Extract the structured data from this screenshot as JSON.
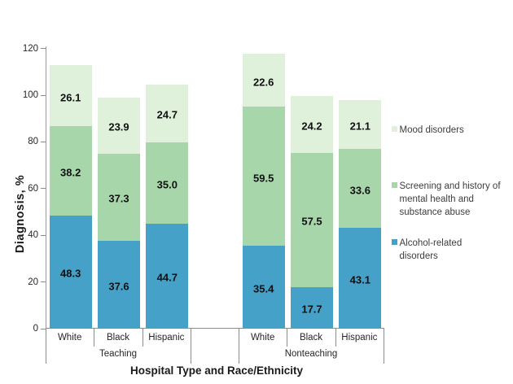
{
  "chart_data": {
    "type": "bar",
    "stacked": true,
    "xlabel": "Hospital Type and Race/Ethnicity",
    "ylabel": "Diagnosis, %",
    "ylim": [
      0,
      120
    ],
    "yticks": [
      0,
      20,
      40,
      60,
      80,
      100,
      120
    ],
    "grid": false,
    "legend_position": "right",
    "groups": [
      {
        "label": "Teaching",
        "categories": [
          "White",
          "Black",
          "Hispanic"
        ]
      },
      {
        "label": "Nonteaching",
        "categories": [
          "White",
          "Black",
          "Hispanic"
        ]
      }
    ],
    "series": [
      {
        "name": "Alcohol-related disorders",
        "color": "#45A1C8",
        "values": [
          48.3,
          37.6,
          44.7,
          35.4,
          17.7,
          43.1
        ],
        "labels": [
          "48.3",
          "37.6",
          "44.7",
          "35.4",
          "17.7",
          "43.1"
        ]
      },
      {
        "name": "Screening and history of mental health and substance abuse",
        "color": "#A8D6AB",
        "values": [
          38.2,
          37.3,
          35.0,
          59.5,
          57.5,
          33.6
        ],
        "labels": [
          "38.2",
          "37.3",
          "35.0",
          "59.5",
          "57.5",
          "33.6"
        ]
      },
      {
        "name": "Mood disorders",
        "color": "#DFF0DB",
        "values": [
          26.1,
          23.9,
          24.7,
          22.6,
          24.2,
          21.1
        ],
        "labels": [
          "26.1",
          "23.9",
          "24.7",
          "22.6",
          "24.2",
          "21.1"
        ]
      }
    ],
    "legend": {
      "items": [
        {
          "series_index": 2,
          "lines": [
            "Mood disorders"
          ]
        },
        {
          "series_index": 1,
          "lines": [
            "Screening and history of",
            "mental health and",
            "substance abuse"
          ]
        },
        {
          "series_index": 0,
          "lines": [
            "Alcohol-related",
            "disorders"
          ]
        }
      ]
    }
  }
}
